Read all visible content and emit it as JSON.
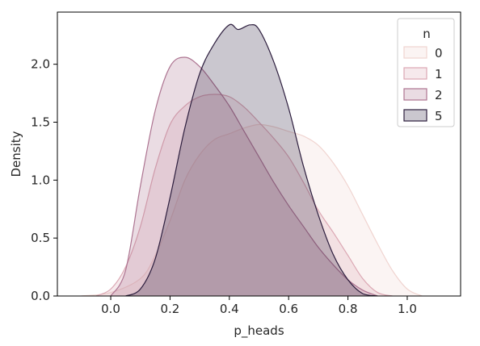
{
  "chart_data": {
    "type": "area",
    "title": "",
    "xlabel": "p_heads",
    "ylabel": "Density",
    "xlim": [
      -0.18,
      1.18
    ],
    "ylim": [
      0,
      2.45
    ],
    "xticks": [
      0.0,
      0.2,
      0.4,
      0.6,
      0.8,
      1.0
    ],
    "xtick_labels": [
      "0.0",
      "0.2",
      "0.4",
      "0.6",
      "0.8",
      "1.0"
    ],
    "yticks": [
      0.0,
      0.5,
      1.0,
      1.5,
      2.0
    ],
    "ytick_labels": [
      "0.0",
      "0.5",
      "1.0",
      "1.5",
      "2.0"
    ],
    "grid": false,
    "legend": {
      "title": "n",
      "placement": "top-right"
    },
    "series": [
      {
        "name": "0",
        "color": "#f0d4d0",
        "points": [
          [
            -0.1,
            0.0
          ],
          [
            0.0,
            0.03
          ],
          [
            0.1,
            0.15
          ],
          [
            0.15,
            0.35
          ],
          [
            0.2,
            0.65
          ],
          [
            0.25,
            1.0
          ],
          [
            0.3,
            1.22
          ],
          [
            0.35,
            1.35
          ],
          [
            0.4,
            1.4
          ],
          [
            0.45,
            1.45
          ],
          [
            0.5,
            1.48
          ],
          [
            0.55,
            1.46
          ],
          [
            0.6,
            1.42
          ],
          [
            0.65,
            1.38
          ],
          [
            0.7,
            1.3
          ],
          [
            0.75,
            1.15
          ],
          [
            0.8,
            0.95
          ],
          [
            0.85,
            0.7
          ],
          [
            0.9,
            0.45
          ],
          [
            0.95,
            0.22
          ],
          [
            1.0,
            0.06
          ],
          [
            1.05,
            0.0
          ]
        ]
      },
      {
        "name": "1",
        "color": "#dba7b3",
        "points": [
          [
            -0.05,
            0.0
          ],
          [
            0.0,
            0.06
          ],
          [
            0.05,
            0.25
          ],
          [
            0.1,
            0.6
          ],
          [
            0.15,
            1.1
          ],
          [
            0.2,
            1.48
          ],
          [
            0.25,
            1.64
          ],
          [
            0.3,
            1.72
          ],
          [
            0.35,
            1.74
          ],
          [
            0.4,
            1.72
          ],
          [
            0.45,
            1.63
          ],
          [
            0.5,
            1.5
          ],
          [
            0.55,
            1.36
          ],
          [
            0.6,
            1.2
          ],
          [
            0.65,
            0.98
          ],
          [
            0.7,
            0.74
          ],
          [
            0.75,
            0.55
          ],
          [
            0.8,
            0.35
          ],
          [
            0.85,
            0.15
          ],
          [
            0.9,
            0.03
          ],
          [
            0.95,
            0.0
          ]
        ]
      },
      {
        "name": "2",
        "color": "#ad7491",
        "points": [
          [
            0.0,
            0.0
          ],
          [
            0.05,
            0.22
          ],
          [
            0.1,
            0.95
          ],
          [
            0.15,
            1.6
          ],
          [
            0.2,
            1.98
          ],
          [
            0.25,
            2.06
          ],
          [
            0.3,
            1.98
          ],
          [
            0.35,
            1.82
          ],
          [
            0.4,
            1.64
          ],
          [
            0.45,
            1.42
          ],
          [
            0.5,
            1.2
          ],
          [
            0.55,
            0.98
          ],
          [
            0.6,
            0.78
          ],
          [
            0.65,
            0.6
          ],
          [
            0.7,
            0.42
          ],
          [
            0.75,
            0.27
          ],
          [
            0.8,
            0.14
          ],
          [
            0.85,
            0.05
          ],
          [
            0.9,
            0.0
          ]
        ]
      },
      {
        "name": "5",
        "color": "#2d1e3e",
        "points": [
          [
            0.05,
            0.0
          ],
          [
            0.1,
            0.06
          ],
          [
            0.15,
            0.32
          ],
          [
            0.2,
            0.85
          ],
          [
            0.25,
            1.45
          ],
          [
            0.3,
            1.92
          ],
          [
            0.35,
            2.18
          ],
          [
            0.4,
            2.34
          ],
          [
            0.43,
            2.3
          ],
          [
            0.47,
            2.34
          ],
          [
            0.5,
            2.3
          ],
          [
            0.55,
            2.02
          ],
          [
            0.6,
            1.62
          ],
          [
            0.65,
            1.12
          ],
          [
            0.7,
            0.7
          ],
          [
            0.75,
            0.36
          ],
          [
            0.8,
            0.14
          ],
          [
            0.85,
            0.02
          ],
          [
            0.9,
            0.0
          ]
        ]
      }
    ]
  }
}
